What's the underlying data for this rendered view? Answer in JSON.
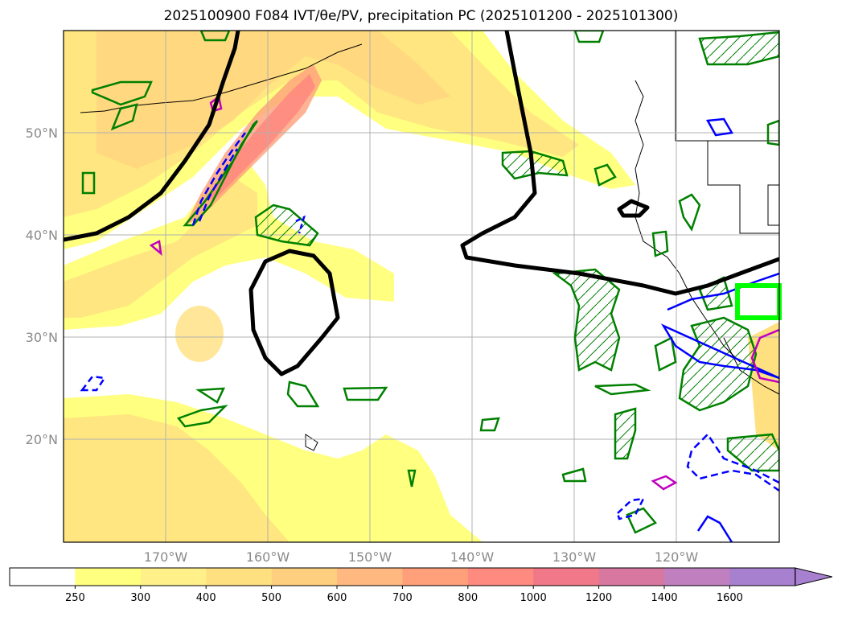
{
  "title": "2025100900 F084 IVT/θe/PV, precipitation PC (2025101200 - 2025101300)",
  "map": {
    "lon_range": [
      "180°",
      "110°W"
    ],
    "lat_range": [
      "10°N",
      "60°N"
    ],
    "lat_ticks": [
      "50°N",
      "40°N",
      "30°N",
      "20°N"
    ],
    "lon_ticks": [
      "170°W",
      "160°W",
      "150°W",
      "140°W",
      "130°W",
      "120°W"
    ],
    "gridlines": true
  },
  "colorbar": {
    "levels": [
      "250",
      "300",
      "400",
      "500",
      "600",
      "700",
      "800",
      "1000",
      "1200",
      "1400",
      "1600"
    ],
    "colors": [
      "#ffffff",
      "#ffff80",
      "#fff08a",
      "#ffe080",
      "#ffcf80",
      "#ffb880",
      "#ffa07a",
      "#ff8a80",
      "#f07888",
      "#d878a0",
      "#c080c0",
      "#a880d0"
    ],
    "extend": "max"
  },
  "legend_colors": {
    "theta_e_contour": "#000000",
    "pv_positive": "#0000ff",
    "pv_negative_dashed": "#0000ff",
    "precip_pc": "#008000",
    "highlight_box": "#00ff00",
    "pv_high": "#c000c0"
  }
}
